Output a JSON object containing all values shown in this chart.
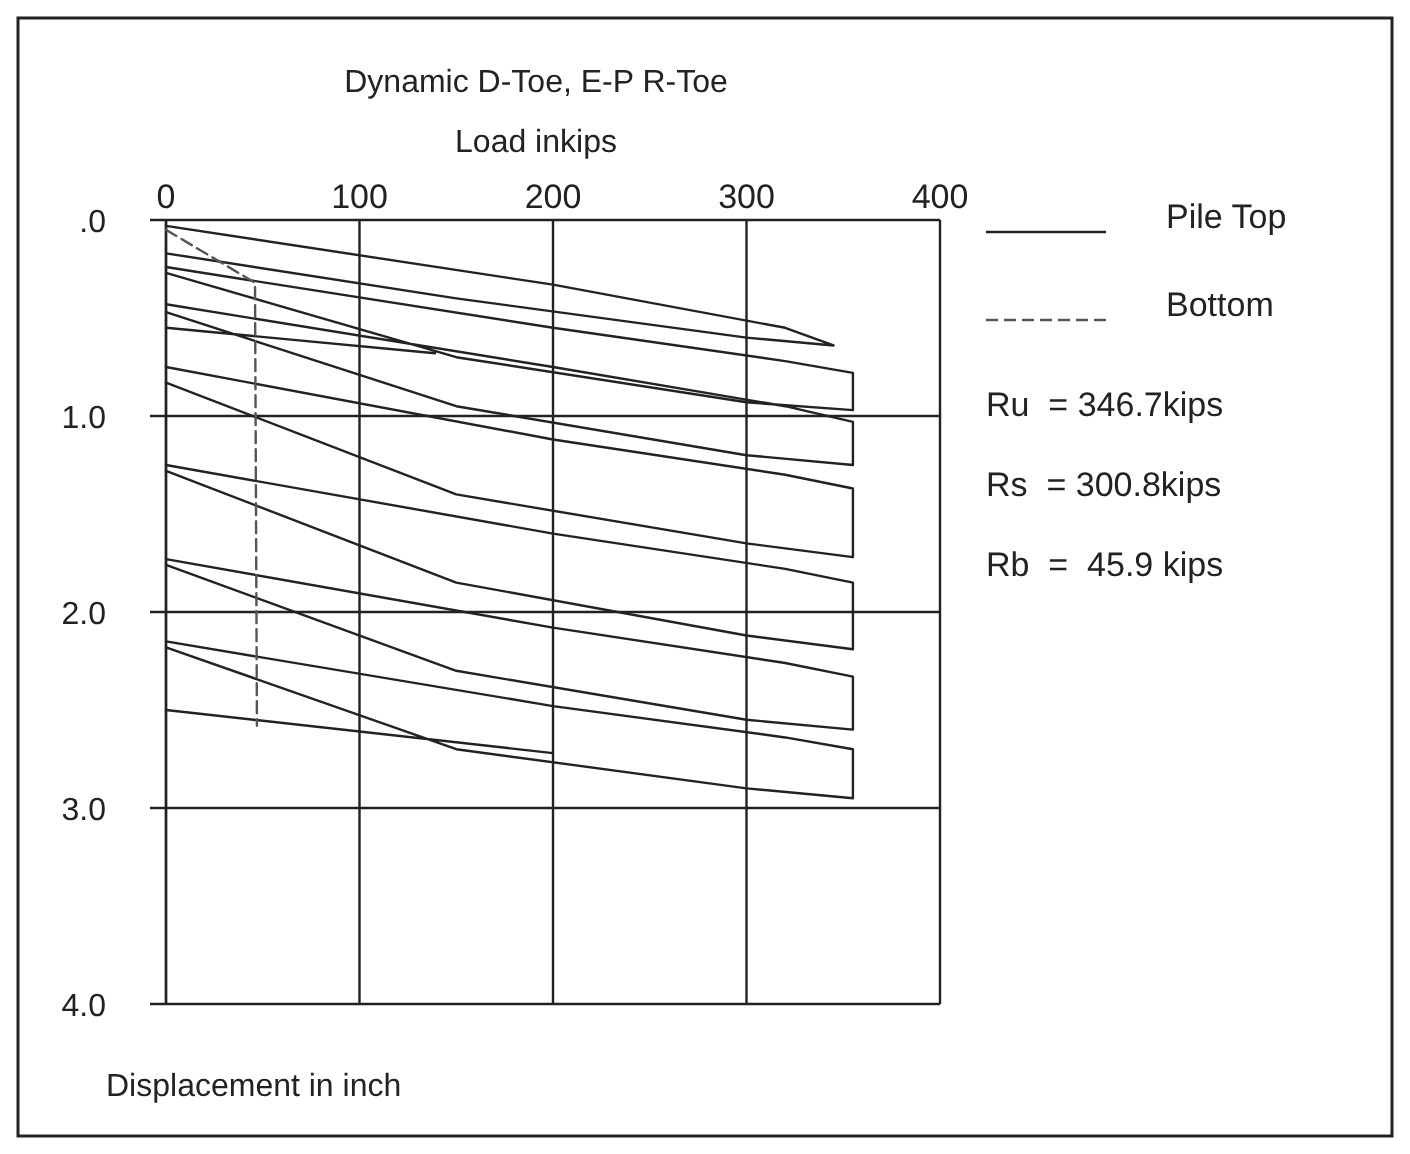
{
  "chart_data": {
    "type": "line",
    "title": "Dynamic D-Toe, E-P R-Toe",
    "xlabel": "Load inkips",
    "ylabel": "Displacement in inch",
    "xlim": [
      0,
      400
    ],
    "xticks": [
      0,
      100,
      200,
      300,
      400
    ],
    "ylim": [
      4,
      0
    ],
    "yticks": [
      {
        "value": 0,
        "label": ".0"
      },
      {
        "value": 1,
        "label": "1.0"
      },
      {
        "value": 2,
        "label": "2.0"
      },
      {
        "value": 3,
        "label": "3.0"
      },
      {
        "value": 4,
        "label": "4.0"
      }
    ],
    "grid": true,
    "legend": "right",
    "series": [
      {
        "name": "Pile Top",
        "color": "#222222",
        "line_style": "solid",
        "x": [
          0,
          200,
          320,
          345,
          300,
          150,
          0,
          null,
          0,
          200,
          320,
          355,
          355,
          300,
          150,
          0,
          null,
          0,
          200,
          320,
          355,
          355,
          300,
          150,
          0,
          null,
          0,
          139,
          null,
          0,
          200,
          320,
          355,
          355,
          300,
          150,
          0,
          null,
          0,
          200,
          320,
          355,
          355,
          300,
          150,
          0,
          null,
          0,
          200,
          320,
          355,
          355,
          300,
          150,
          0,
          null,
          0,
          200,
          320,
          355,
          355,
          300,
          150,
          0,
          null,
          0,
          200
        ],
        "values": [
          0.03,
          0.33,
          0.55,
          0.64,
          0.6,
          0.4,
          0.17,
          null,
          0.24,
          0.55,
          0.72,
          0.78,
          0.97,
          0.93,
          0.7,
          0.27,
          null,
          0.43,
          0.75,
          0.95,
          1.03,
          1.25,
          1.2,
          0.95,
          0.47,
          null,
          0.55,
          0.68,
          null,
          0.75,
          1.12,
          1.3,
          1.37,
          1.72,
          1.65,
          1.4,
          0.83,
          null,
          1.25,
          1.6,
          1.78,
          1.85,
          2.19,
          2.12,
          1.85,
          1.28,
          null,
          1.73,
          2.08,
          2.26,
          2.33,
          2.6,
          2.55,
          2.3,
          1.76,
          null,
          2.15,
          2.48,
          2.64,
          2.7,
          2.95,
          2.9,
          2.7,
          2.18,
          null,
          2.5,
          2.72
        ]
      },
      {
        "name": "Bottom",
        "color": "#555555",
        "line_style": "dashed",
        "x": [
          0,
          46,
          47
        ],
        "values": [
          0.05,
          0.32,
          2.58
        ]
      }
    ],
    "annotations": [
      "Ru  = 346.7kips",
      "Rs  = 300.8kips",
      "Rb  =  45.9 kips"
    ]
  }
}
